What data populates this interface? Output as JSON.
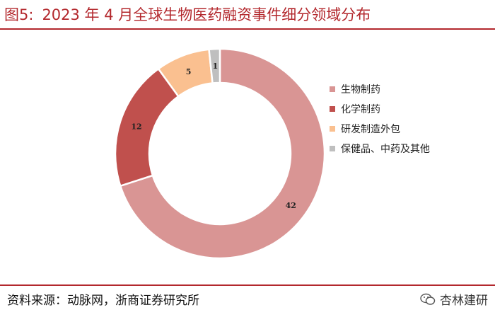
{
  "header": {
    "fig_label": "图5:",
    "title": "2023 年 4 月全球生物医药融资事件细分领域分布"
  },
  "footer": {
    "source": "资料来源：动脉网，浙商证券研究所",
    "watermark": "杏林建研"
  },
  "colors": {
    "accent": "#b3282d"
  },
  "chart_data": {
    "type": "pie",
    "variant": "donut",
    "title": "",
    "categories": [
      "生物制药",
      "化学制药",
      "研发制造外包",
      "保健品、中药及其他"
    ],
    "values": [
      42,
      12,
      5,
      1
    ],
    "colors": [
      "#d99594",
      "#c0504d",
      "#fac090",
      "#bfbfbf"
    ],
    "data_labels": [
      "42",
      "12",
      "5",
      "1"
    ],
    "legend_position": "right"
  }
}
